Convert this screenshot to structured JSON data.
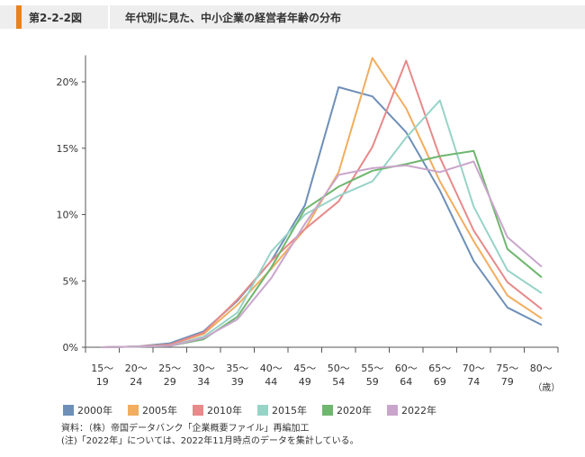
{
  "header": {
    "figure_number": "第2-2-2図",
    "title": "年代別に見た、中小企業の経営者年齢の分布"
  },
  "notes": {
    "source": "資料：（株）帝国データバンク「企業概要ファイル」再編加工",
    "note": "(注)「2022年」については、2022年11月時点のデータを集計している。"
  },
  "chart_data": {
    "type": "line",
    "title": "年代別に見た、中小企業の経営者年齢の分布",
    "x_unit": "（歳）",
    "y_ticks": [
      "0%",
      "5%",
      "10%",
      "15%",
      "20%"
    ],
    "ylim": [
      0,
      22
    ],
    "grid": false,
    "legend_position": "bottom",
    "categories": [
      [
        "15～",
        "19"
      ],
      [
        "20～",
        "24"
      ],
      [
        "25～",
        "29"
      ],
      [
        "30～",
        "34"
      ],
      [
        "35～",
        "39"
      ],
      [
        "40～",
        "44"
      ],
      [
        "45～",
        "49"
      ],
      [
        "50～",
        "54"
      ],
      [
        "55～",
        "59"
      ],
      [
        "60～",
        "64"
      ],
      [
        "65～",
        "69"
      ],
      [
        "70～",
        "74"
      ],
      [
        "75～",
        "79"
      ],
      [
        "80～",
        ""
      ]
    ],
    "series": [
      {
        "name": "2000年",
        "color": "#6e8fb8",
        "values": [
          0,
          0.05,
          0.3,
          1.2,
          3.5,
          6.5,
          10.7,
          19.6,
          18.9,
          16.2,
          11.8,
          6.5,
          3.0,
          1.7
        ]
      },
      {
        "name": "2005年",
        "color": "#f2ad5e",
        "values": [
          0,
          0.05,
          0.2,
          1.0,
          3.2,
          5.9,
          8.9,
          13.2,
          21.8,
          18.0,
          12.5,
          8.0,
          3.9,
          2.2
        ]
      },
      {
        "name": "2010年",
        "color": "#e78a8a",
        "values": [
          0,
          0.05,
          0.2,
          1.1,
          3.6,
          6.5,
          8.9,
          11.0,
          15.1,
          21.6,
          14.3,
          8.8,
          4.9,
          2.9
        ]
      },
      {
        "name": "2015年",
        "color": "#98d3c8",
        "values": [
          0,
          0.05,
          0.1,
          0.8,
          2.6,
          7.2,
          10.0,
          11.4,
          12.5,
          15.8,
          18.6,
          10.6,
          5.8,
          4.1
        ]
      },
      {
        "name": "2020年",
        "color": "#6fb66f",
        "values": [
          0,
          0.05,
          0.1,
          0.6,
          2.3,
          6.0,
          10.4,
          12.1,
          13.3,
          13.8,
          14.4,
          14.8,
          7.4,
          5.3
        ]
      },
      {
        "name": "2022年",
        "color": "#c9a5cc",
        "values": [
          0,
          0.05,
          0.1,
          0.7,
          2.1,
          5.2,
          9.3,
          13.0,
          13.5,
          13.7,
          13.2,
          14.0,
          8.3,
          6.1
        ]
      }
    ]
  }
}
